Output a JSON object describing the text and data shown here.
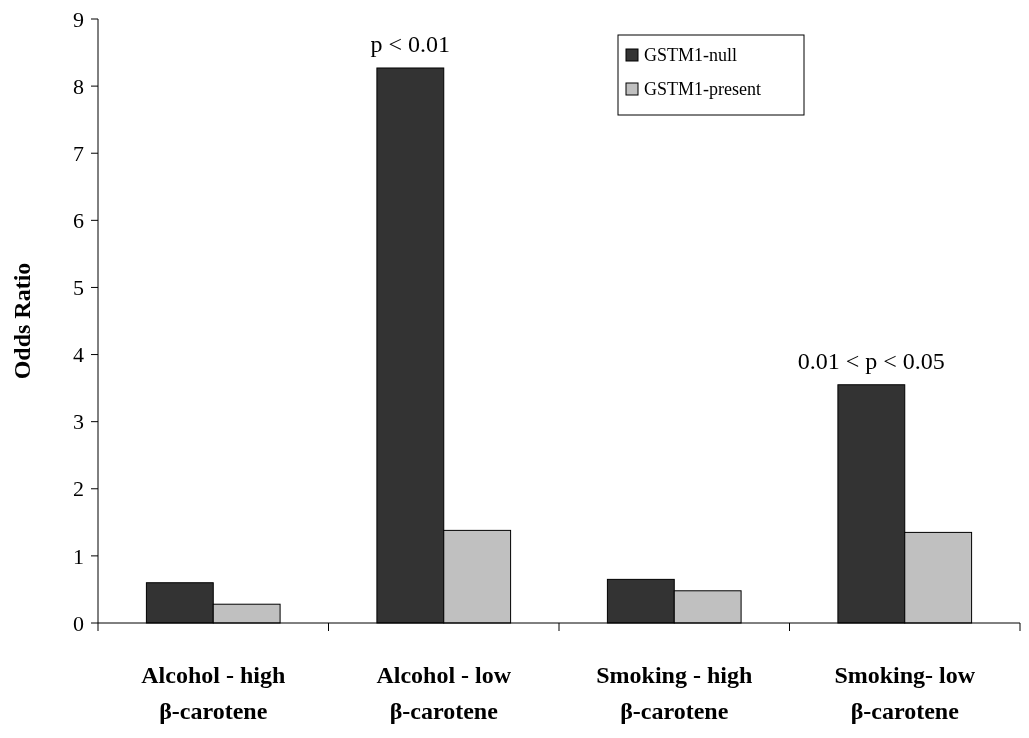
{
  "chart_data": {
    "type": "bar",
    "ylabel": "Odds Ratio",
    "categories": [
      "Alcohol - high\nβ-carotene",
      "Alcohol - low\nβ-carotene",
      "Smoking - high\nβ-carotene",
      "Smoking- low\nβ-carotene"
    ],
    "series": [
      {
        "name": "GSTM1-null",
        "color": "#333333",
        "values": [
          0.6,
          8.27,
          0.65,
          3.55
        ]
      },
      {
        "name": "GSTM1-present",
        "color": "#c0c0c0",
        "values": [
          0.28,
          1.38,
          0.48,
          1.35
        ]
      }
    ],
    "ylim": [
      0,
      9
    ],
    "yticks": [
      0,
      1,
      2,
      3,
      4,
      5,
      6,
      7,
      8,
      9
    ],
    "grid": false,
    "legend": "top right",
    "annotations": [
      {
        "text": "p < 0.01",
        "x": "Alcohol - low\nβ-carotene",
        "y": 8.27
      },
      {
        "text": "0.01 < p < 0.05",
        "x": "Smoking- low\nβ-carotene",
        "y": 3.55
      }
    ]
  }
}
